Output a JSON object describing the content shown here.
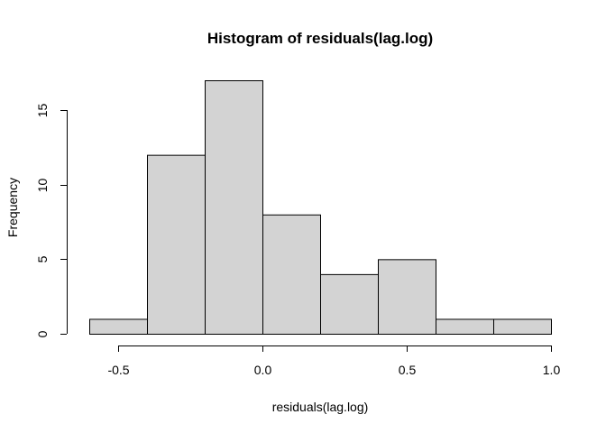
{
  "chart_data": {
    "type": "bar",
    "title": "Histogram of residuals(lag.log)",
    "xlabel": "residuals(lag.log)",
    "ylabel": "Frequency",
    "bins": [
      {
        "from": -0.6,
        "to": -0.4,
        "value": 1
      },
      {
        "from": -0.4,
        "to": -0.2,
        "value": 12
      },
      {
        "from": -0.2,
        "to": 0.0,
        "value": 17
      },
      {
        "from": 0.0,
        "to": 0.2,
        "value": 8
      },
      {
        "from": 0.2,
        "to": 0.4,
        "value": 4
      },
      {
        "from": 0.4,
        "to": 0.6,
        "value": 5
      },
      {
        "from": 0.6,
        "to": 0.8,
        "value": 1
      },
      {
        "from": 0.8,
        "to": 1.0,
        "value": 1
      }
    ],
    "xticks": [
      -0.5,
      0.0,
      0.5,
      1.0
    ],
    "xtick_labels": [
      "-0.5",
      "0.0",
      "0.5",
      "1.0"
    ],
    "yticks": [
      0,
      5,
      10,
      15
    ],
    "ytick_labels": [
      "0",
      "5",
      "10",
      "15"
    ],
    "xlim": [
      -0.6,
      1.0
    ],
    "ylim": [
      0,
      17
    ],
    "grid": false,
    "legend": "none"
  }
}
